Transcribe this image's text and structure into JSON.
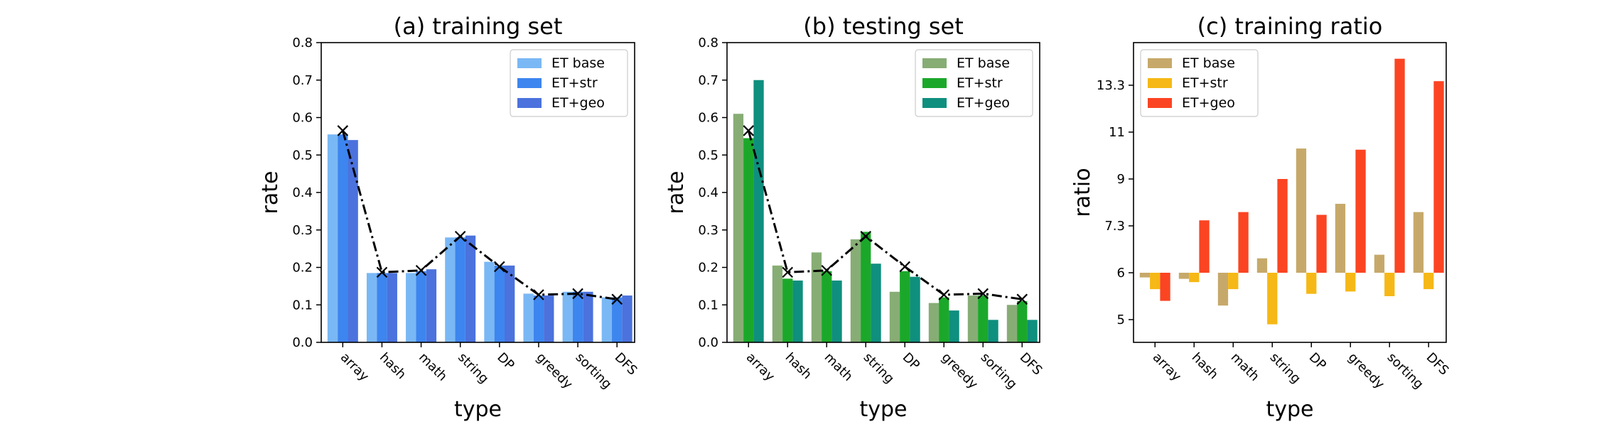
{
  "chart_data": [
    {
      "type": "bar",
      "title": "(a) training set",
      "xlabel": "type",
      "ylabel": "rate",
      "categories": [
        "array",
        "hash",
        "math",
        "string",
        "DP",
        "greedy",
        "sorting",
        "DFS"
      ],
      "ylim": [
        0,
        0.8
      ],
      "yticks": [
        "0.0",
        "0.1",
        "0.2",
        "0.3",
        "0.4",
        "0.5",
        "0.6",
        "0.7",
        "0.8"
      ],
      "yticks_values": [
        0,
        0.1,
        0.2,
        0.3,
        0.4,
        0.5,
        0.6,
        0.7,
        0.8
      ],
      "legend_position": "top-right",
      "grid": false,
      "series": [
        {
          "name": "ET base",
          "color": "#7ab8f5",
          "values": [
            0.555,
            0.185,
            0.185,
            0.28,
            0.215,
            0.13,
            0.135,
            0.12
          ]
        },
        {
          "name": "ET+str",
          "color": "#3d85ef",
          "values": [
            0.555,
            0.185,
            0.19,
            0.28,
            0.205,
            0.125,
            0.135,
            0.12
          ]
        },
        {
          "name": "ET+geo",
          "color": "#4b72dd",
          "values": [
            0.54,
            0.185,
            0.195,
            0.285,
            0.205,
            0.125,
            0.135,
            0.125
          ]
        }
      ],
      "reference_line": {
        "values": [
          0.565,
          0.187,
          0.192,
          0.283,
          0.202,
          0.127,
          0.13,
          0.115
        ],
        "color": "#000000"
      }
    },
    {
      "type": "bar",
      "title": "(b) testing set",
      "xlabel": "type",
      "ylabel": "rate",
      "categories": [
        "array",
        "hash",
        "math",
        "string",
        "DP",
        "greedy",
        "sorting",
        "DFS"
      ],
      "ylim": [
        0,
        0.8
      ],
      "yticks": [
        "0.0",
        "0.1",
        "0.2",
        "0.3",
        "0.4",
        "0.5",
        "0.6",
        "0.7",
        "0.8"
      ],
      "yticks_values": [
        0,
        0.1,
        0.2,
        0.3,
        0.4,
        0.5,
        0.6,
        0.7,
        0.8
      ],
      "legend_position": "top-right",
      "grid": false,
      "series": [
        {
          "name": "ET base",
          "color": "#87ad75",
          "values": [
            0.61,
            0.205,
            0.24,
            0.275,
            0.135,
            0.105,
            0.125,
            0.1
          ]
        },
        {
          "name": "ET+str",
          "color": "#1ba82a",
          "values": [
            0.545,
            0.17,
            0.19,
            0.295,
            0.19,
            0.12,
            0.125,
            0.11
          ]
        },
        {
          "name": "ET+geo",
          "color": "#0f8f7e",
          "values": [
            0.7,
            0.165,
            0.165,
            0.21,
            0.175,
            0.085,
            0.06,
            0.06
          ]
        }
      ],
      "reference_line": {
        "values": [
          0.565,
          0.187,
          0.192,
          0.283,
          0.202,
          0.127,
          0.13,
          0.115
        ],
        "color": "#000000"
      }
    },
    {
      "type": "bar",
      "title": "(c) training ratio",
      "xlabel": "type",
      "ylabel": "ratio",
      "categories": [
        "array",
        "hash",
        "math",
        "string",
        "DP",
        "greedy",
        "sorting",
        "DFS"
      ],
      "baseline": 6,
      "ylim": [
        4.5,
        15
      ],
      "yticks": [
        "5",
        "6",
        "7.3",
        "9",
        "11",
        "13.3"
      ],
      "yticks_values": [
        5,
        6,
        7.3,
        9,
        11,
        13.3
      ],
      "legend_position": "top-left",
      "grid": false,
      "series": [
        {
          "name": "ET base",
          "color": "#c6a96a",
          "values": [
            5.9,
            5.87,
            5.3,
            6.4,
            10.3,
            8.1,
            6.5,
            7.8
          ]
        },
        {
          "name": "ET+str",
          "color": "#f6b816",
          "values": [
            5.65,
            5.8,
            5.65,
            4.9,
            5.55,
            5.6,
            5.5,
            5.65
          ]
        },
        {
          "name": "ET+geo",
          "color": "#fb4422",
          "values": [
            5.4,
            7.5,
            7.8,
            9.0,
            7.7,
            10.25,
            14.6,
            13.5
          ]
        }
      ]
    }
  ]
}
